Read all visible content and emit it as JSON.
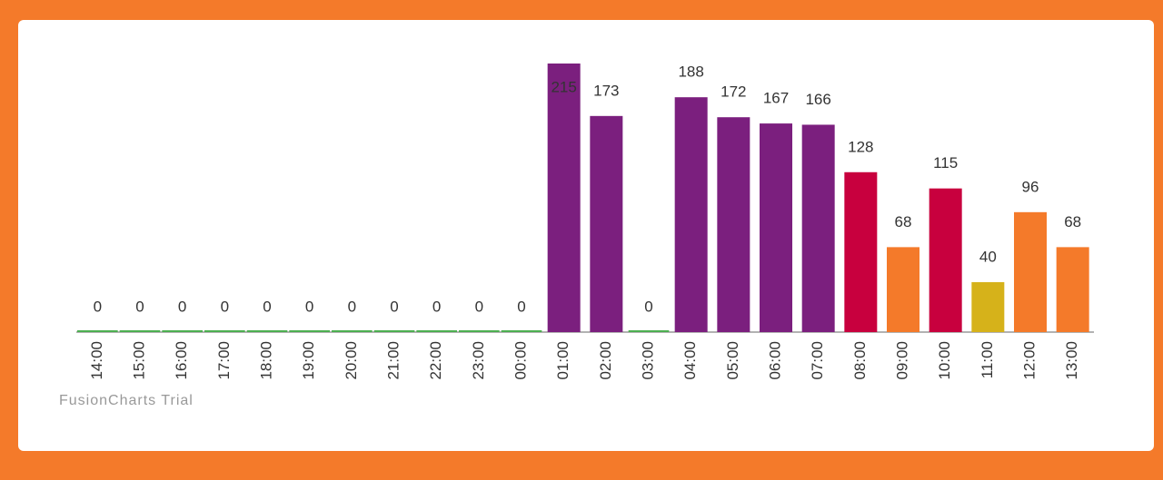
{
  "chart_data": {
    "type": "bar",
    "categories": [
      "14:00",
      "15:00",
      "16:00",
      "17:00",
      "18:00",
      "19:00",
      "20:00",
      "21:00",
      "22:00",
      "23:00",
      "00:00",
      "01:00",
      "02:00",
      "03:00",
      "04:00",
      "05:00",
      "06:00",
      "07:00",
      "08:00",
      "09:00",
      "10:00",
      "11:00",
      "12:00",
      "13:00"
    ],
    "values": [
      0,
      0,
      0,
      0,
      0,
      0,
      0,
      0,
      0,
      0,
      0,
      215,
      173,
      0,
      188,
      172,
      167,
      166,
      128,
      68,
      115,
      40,
      96,
      68
    ],
    "colors": [
      "#4caf50",
      "#4caf50",
      "#4caf50",
      "#4caf50",
      "#4caf50",
      "#4caf50",
      "#4caf50",
      "#4caf50",
      "#4caf50",
      "#4caf50",
      "#4caf50",
      "#7b1f7e",
      "#7b1f7e",
      "#4caf50",
      "#7b1f7e",
      "#7b1f7e",
      "#7b1f7e",
      "#7b1f7e",
      "#c8003e",
      "#f47a2a",
      "#c8003e",
      "#d6b21a",
      "#f47a2a",
      "#f47a2a"
    ],
    "watermark": "FusionCharts Trial"
  }
}
